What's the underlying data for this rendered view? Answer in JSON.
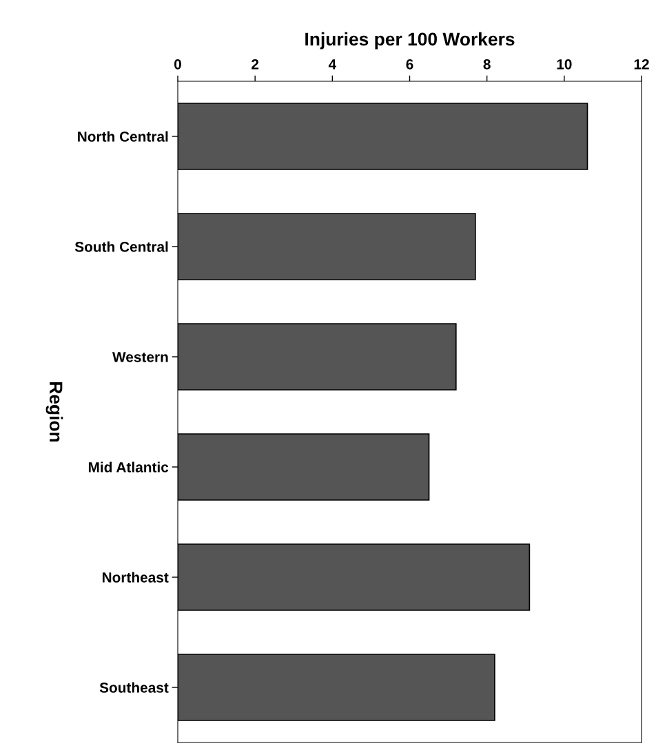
{
  "chart_data": {
    "type": "bar",
    "orientation": "horizontal",
    "xlabel": "Injuries per 100 Workers",
    "ylabel": "Region",
    "categories": [
      "North Central",
      "South Central",
      "Western",
      "Mid Atlantic",
      "Northeast",
      "Southeast"
    ],
    "values": [
      10.6,
      7.7,
      7.2,
      6.5,
      9.1,
      8.2
    ],
    "color": "#555555",
    "xlim": [
      0,
      12
    ],
    "xticks": [
      0,
      2,
      4,
      6,
      8,
      10,
      12
    ],
    "grid": false,
    "legend": false
  }
}
